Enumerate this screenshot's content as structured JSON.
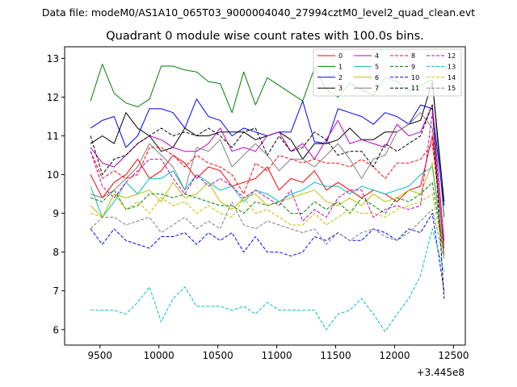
{
  "chart_data": {
    "type": "line",
    "suptitle": "Data file: modeM0/AS1A10_065T03_9000004040_27994cztM0_level2_quad_clean.evt",
    "title": "Quadrant 0 module wise count rates with 100.0s bins.",
    "xlabel": "",
    "ylabel": "",
    "x_offset_label": "+3.445e8",
    "xlim": [
      9200,
      12600
    ],
    "ylim": [
      5.6,
      13.3
    ],
    "xticks": [
      9500,
      10000,
      10500,
      11000,
      11500,
      12000,
      12500
    ],
    "yticks": [
      6,
      7,
      8,
      9,
      10,
      11,
      12,
      13
    ],
    "x": [
      9420,
      9520,
      9620,
      9720,
      9820,
      9920,
      10020,
      10120,
      10220,
      10320,
      10420,
      10520,
      10620,
      10720,
      10820,
      10920,
      11020,
      11120,
      11220,
      11320,
      11420,
      11520,
      11620,
      11720,
      11820,
      11920,
      12020,
      12120,
      12220,
      12320,
      12420
    ],
    "legend_position": "upper right",
    "series": [
      {
        "name": "0",
        "color": "#ff0000",
        "dash": "solid",
        "values": [
          10.0,
          9.4,
          9.8,
          10.0,
          10.4,
          9.9,
          10.1,
          10.5,
          10.3,
          9.9,
          10.2,
          10.1,
          9.7,
          9.8,
          9.9,
          10.2,
          9.6,
          9.9,
          9.8,
          10.1,
          9.6,
          9.8,
          9.6,
          9.4,
          9.6,
          9.5,
          9.3,
          9.6,
          9.7,
          11.0,
          8.1
        ]
      },
      {
        "name": "1",
        "color": "#008000",
        "dash": "solid",
        "values": [
          11.9,
          12.85,
          12.1,
          11.85,
          11.75,
          11.95,
          12.8,
          12.8,
          12.7,
          12.65,
          12.4,
          12.35,
          11.6,
          12.65,
          11.8,
          12.5,
          12.3,
          12.1,
          11.9,
          12.75,
          12.2,
          12.0,
          12.35,
          12.2,
          12.05,
          12.5,
          12.4,
          12.15,
          12.3,
          12.45,
          8.9
        ]
      },
      {
        "name": "2",
        "color": "#0000ff",
        "dash": "solid",
        "values": [
          11.2,
          11.4,
          11.5,
          10.7,
          11.0,
          11.7,
          11.7,
          11.6,
          11.2,
          11.95,
          11.5,
          11.4,
          11.0,
          11.2,
          11.1,
          11.0,
          11.1,
          11.1,
          11.9,
          10.85,
          10.8,
          11.7,
          11.6,
          11.5,
          11.3,
          11.6,
          11.5,
          11.3,
          11.8,
          11.7,
          9.2
        ]
      },
      {
        "name": "3",
        "color": "#000000",
        "dash": "solid",
        "values": [
          10.8,
          11.0,
          10.8,
          11.6,
          11.2,
          11.0,
          10.6,
          10.7,
          11.2,
          11.0,
          11.0,
          11.1,
          11.1,
          11.1,
          10.9,
          11.0,
          11.1,
          10.9,
          10.4,
          10.8,
          10.8,
          10.9,
          11.2,
          10.9,
          10.9,
          11.1,
          11.1,
          11.3,
          11.4,
          12.4,
          9.3
        ]
      },
      {
        "name": "4",
        "color": "#bf00bf",
        "dash": "solid",
        "values": [
          10.7,
          10.3,
          10.2,
          10.5,
          10.8,
          11.0,
          10.9,
          10.7,
          10.6,
          10.6,
          10.8,
          11.2,
          10.6,
          10.7,
          10.6,
          11.0,
          11.1,
          10.6,
          10.8,
          10.4,
          10.9,
          11.4,
          10.8,
          10.9,
          10.8,
          10.7,
          11.3,
          11.0,
          11.1,
          11.8,
          8.3
        ]
      },
      {
        "name": "5",
        "color": "#00bfbf",
        "dash": "solid",
        "values": [
          9.7,
          8.9,
          9.3,
          9.8,
          9.5,
          9.9,
          9.9,
          10.1,
          9.6,
          10.0,
          9.8,
          9.6,
          9.7,
          9.3,
          9.6,
          9.5,
          9.3,
          9.5,
          9.6,
          9.8,
          9.7,
          9.7,
          9.5,
          9.7,
          9.6,
          9.5,
          9.6,
          9.7,
          10.0,
          10.2,
          7.9
        ]
      },
      {
        "name": "6",
        "color": "#bfbf00",
        "dash": "solid",
        "values": [
          9.2,
          8.9,
          9.5,
          9.4,
          9.5,
          9.6,
          9.3,
          9.8,
          9.4,
          9.5,
          9.8,
          9.3,
          9.1,
          9.4,
          9.5,
          9.2,
          9.3,
          9.4,
          9.5,
          9.6,
          9.3,
          9.2,
          9.4,
          9.2,
          9.5,
          9.3,
          9.4,
          9.6,
          9.5,
          10.3,
          8.0
        ]
      },
      {
        "name": "7",
        "color": "#808080",
        "dash": "solid",
        "values": [
          9.5,
          9.4,
          9.6,
          9.9,
          10.2,
          10.8,
          10.5,
          10.2,
          9.6,
          10.7,
          10.6,
          10.9,
          10.2,
          10.5,
          10.8,
          10.5,
          10.1,
          10.4,
          10.4,
          10.2,
          10.5,
          10.8,
          10.4,
          9.9,
          10.4,
          10.5,
          11.1,
          11.3,
          11.6,
          11.2,
          8.1
        ]
      },
      {
        "name": "8",
        "color": "#ff0000",
        "dash": "dashed",
        "values": [
          10.6,
          9.9,
          10.1,
          9.9,
          10.0,
          10.7,
          10.7,
          10.5,
          10.2,
          10.5,
          10.3,
          10.2,
          10.0,
          9.5,
          10.3,
          10.1,
          10.5,
          10.4,
          10.3,
          10.4,
          10.3,
          10.3,
          10.2,
          10.4,
          10.2,
          9.9,
          10.3,
          10.3,
          10.4,
          10.8,
          8.2
        ]
      },
      {
        "name": "9",
        "color": "#008000",
        "dash": "dashed",
        "values": [
          9.4,
          9.3,
          9.6,
          9.1,
          9.2,
          9.5,
          9.5,
          9.4,
          9.5,
          9.4,
          9.3,
          9.2,
          9.2,
          9.0,
          9.3,
          9.2,
          9.3,
          9.0,
          9.0,
          9.3,
          9.1,
          9.3,
          9.0,
          9.4,
          9.2,
          9.0,
          9.4,
          9.3,
          9.5,
          9.8,
          7.9
        ]
      },
      {
        "name": "10",
        "color": "#0000ff",
        "dash": "dashed",
        "values": [
          8.6,
          8.2,
          8.6,
          8.3,
          8.2,
          8.1,
          8.4,
          8.4,
          8.5,
          8.2,
          8.5,
          8.3,
          8.5,
          8.0,
          8.4,
          8.0,
          8.0,
          7.9,
          8.0,
          8.4,
          8.3,
          8.5,
          8.3,
          8.3,
          8.6,
          8.5,
          8.3,
          8.6,
          8.5,
          9.0,
          7.0
        ]
      },
      {
        "name": "11",
        "color": "#000000",
        "dash": "dashed",
        "values": [
          11.0,
          10.0,
          10.4,
          10.5,
          10.8,
          11.0,
          11.2,
          11.0,
          11.1,
          11.0,
          11.2,
          11.0,
          10.7,
          11.1,
          11.2,
          10.5,
          11.0,
          10.6,
          10.7,
          11.1,
          10.9,
          10.5,
          10.6,
          10.6,
          10.2,
          10.8,
          10.6,
          10.8,
          11.0,
          11.8,
          6.8
        ]
      },
      {
        "name": "12",
        "color": "#bf00bf",
        "dash": "dashed",
        "values": [
          10.6,
          9.7,
          9.4,
          9.8,
          10.1,
          10.4,
          10.4,
          9.9,
          9.5,
          10.0,
          9.7,
          9.9,
          9.7,
          9.4,
          9.6,
          9.4,
          9.2,
          9.6,
          8.8,
          9.1,
          8.9,
          9.4,
          9.6,
          9.6,
          8.9,
          9.1,
          9.2,
          9.1,
          9.2,
          11.6,
          7.9
        ]
      },
      {
        "name": "13",
        "color": "#00bfbf",
        "dash": "dashed",
        "values": [
          6.5,
          6.5,
          6.5,
          6.4,
          6.7,
          7.1,
          6.2,
          6.8,
          7.1,
          6.6,
          6.6,
          6.6,
          6.5,
          6.6,
          6.4,
          6.7,
          6.5,
          6.5,
          6.5,
          6.5,
          6.0,
          6.4,
          6.5,
          6.8,
          6.4,
          5.95,
          6.4,
          6.8,
          7.4,
          8.6,
          7.5
        ]
      },
      {
        "name": "14",
        "color": "#bfbf00",
        "dash": "dashed",
        "values": [
          9.0,
          8.9,
          9.5,
          9.1,
          9.3,
          9.0,
          9.4,
          9.2,
          9.3,
          9.0,
          9.2,
          9.0,
          8.9,
          9.4,
          9.0,
          9.1,
          8.9,
          8.7,
          8.7,
          9.0,
          8.7,
          8.9,
          9.1,
          9.0,
          9.0,
          8.9,
          9.1,
          9.2,
          9.3,
          9.5,
          7.9
        ]
      },
      {
        "name": "15",
        "color": "#808080",
        "dash": "dashed",
        "values": [
          8.6,
          8.9,
          8.9,
          8.7,
          8.8,
          8.9,
          8.5,
          8.7,
          8.9,
          8.6,
          8.8,
          8.6,
          9.3,
          8.7,
          8.6,
          8.8,
          8.7,
          8.6,
          8.5,
          8.6,
          8.2,
          8.5,
          8.3,
          8.5,
          8.6,
          8.4,
          8.3,
          8.5,
          8.8,
          9.1,
          7.8
        ]
      }
    ]
  }
}
